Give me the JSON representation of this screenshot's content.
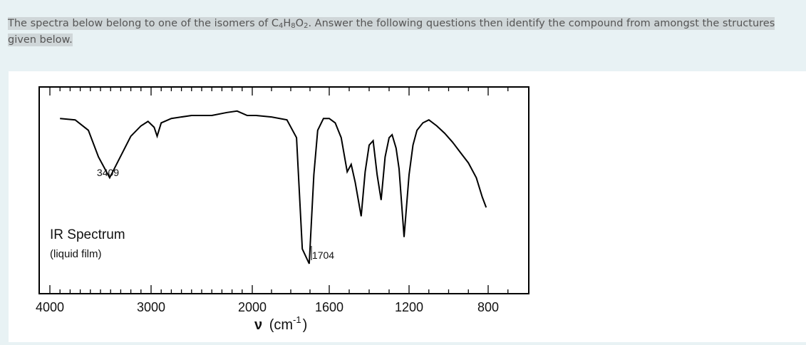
{
  "question": {
    "text_before": "The spectra below belong to one of the isomers of C",
    "sub1": "4",
    "h": "H",
    "sub2": "8",
    "o": "O",
    "sub3": "2",
    "text_after": ". Answer the following questions then identify the compound from amongst the structures given below."
  },
  "chart_data": {
    "type": "line",
    "title": "IR Spectrum",
    "subtitle": "(liquid film)",
    "xlabel_symbol": "ν",
    "xlabel_units": "(cm",
    "xlabel_exp": "-1",
    "xlabel_close": ")",
    "x_tick_labels": [
      "4000",
      "3000",
      "2000",
      "1600",
      "1200",
      "800"
    ],
    "x_scale": "split: 1000 cm-1 per major tick above 2000, 400 cm-1 per major tick below 2000",
    "xlim": [
      4000,
      600
    ],
    "ylabel": "",
    "y_axis": "transmittance (relative, 0 = baseline, 1 = strongest absorption)",
    "annotations": [
      {
        "text": "3409",
        "x": 3409
      },
      {
        "text": "1704",
        "x": 1704
      }
    ],
    "series": [
      {
        "values": [
          [
            3900,
            0.02
          ],
          [
            3750,
            0.03
          ],
          [
            3620,
            0.1
          ],
          [
            3520,
            0.28
          ],
          [
            3409,
            0.42
          ],
          [
            3320,
            0.3
          ],
          [
            3200,
            0.14
          ],
          [
            3100,
            0.07
          ],
          [
            3030,
            0.04
          ],
          [
            2970,
            0.08
          ],
          [
            2940,
            0.14
          ],
          [
            2900,
            0.05
          ],
          [
            2800,
            0.02
          ],
          [
            2600,
            0.0
          ],
          [
            2400,
            0.0
          ],
          [
            2250,
            -0.02
          ],
          [
            2150,
            -0.03
          ],
          [
            2050,
            0.0
          ],
          [
            1980,
            0.0
          ],
          [
            1900,
            0.01
          ],
          [
            1820,
            0.03
          ],
          [
            1770,
            0.15
          ],
          [
            1740,
            0.9
          ],
          [
            1704,
            1.0
          ],
          [
            1680,
            0.4
          ],
          [
            1660,
            0.1
          ],
          [
            1630,
            0.02
          ],
          [
            1600,
            0.02
          ],
          [
            1570,
            0.05
          ],
          [
            1540,
            0.15
          ],
          [
            1510,
            0.38
          ],
          [
            1490,
            0.33
          ],
          [
            1470,
            0.45
          ],
          [
            1440,
            0.68
          ],
          [
            1420,
            0.38
          ],
          [
            1400,
            0.2
          ],
          [
            1380,
            0.17
          ],
          [
            1360,
            0.4
          ],
          [
            1340,
            0.57
          ],
          [
            1320,
            0.28
          ],
          [
            1300,
            0.15
          ],
          [
            1285,
            0.13
          ],
          [
            1265,
            0.22
          ],
          [
            1250,
            0.36
          ],
          [
            1225,
            0.82
          ],
          [
            1200,
            0.4
          ],
          [
            1180,
            0.2
          ],
          [
            1160,
            0.1
          ],
          [
            1130,
            0.05
          ],
          [
            1100,
            0.03
          ],
          [
            1060,
            0.07
          ],
          [
            1020,
            0.12
          ],
          [
            980,
            0.18
          ],
          [
            940,
            0.25
          ],
          [
            900,
            0.32
          ],
          [
            860,
            0.42
          ],
          [
            830,
            0.55
          ],
          [
            810,
            0.62
          ]
        ]
      }
    ]
  }
}
